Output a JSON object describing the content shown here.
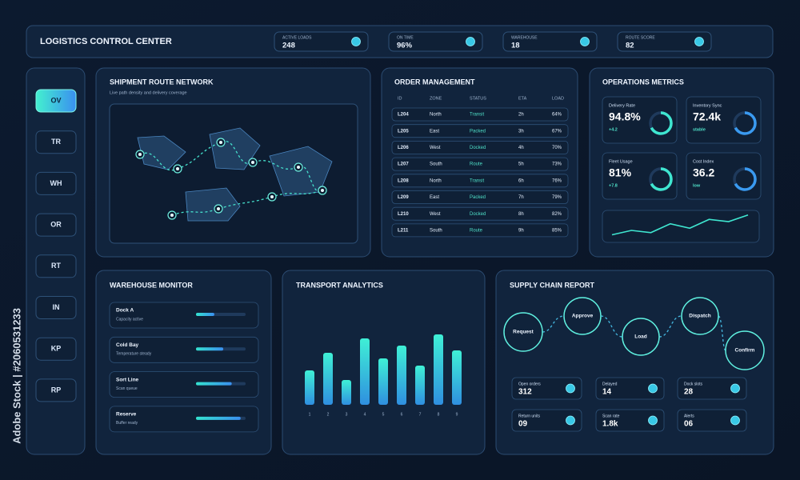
{
  "header": {
    "title": "LOGISTICS CONTROL CENTER",
    "stats": [
      {
        "label": "ACTIVE LOADS",
        "value": "248"
      },
      {
        "label": "ON TIME",
        "value": "96%"
      },
      {
        "label": "WAREHOUSE",
        "value": "18"
      },
      {
        "label": "ROUTE SCORE",
        "value": "82"
      }
    ]
  },
  "sidebar": {
    "items": [
      "OV",
      "TR",
      "WH",
      "OR",
      "RT",
      "IN",
      "KP",
      "RP"
    ],
    "active": 0
  },
  "route_network": {
    "title": "SHIPMENT ROUTE NETWORK",
    "subtitle": "Live path density and delivery coverage"
  },
  "order_management": {
    "title": "ORDER MANAGEMENT",
    "columns": [
      "ID",
      "ZONE",
      "STATUS",
      "ETA",
      "LOAD"
    ],
    "rows": [
      [
        "L204",
        "North",
        "Transit",
        "2h",
        "64%"
      ],
      [
        "L205",
        "East",
        "Packed",
        "3h",
        "67%"
      ],
      [
        "L206",
        "West",
        "Docked",
        "4h",
        "70%"
      ],
      [
        "L207",
        "South",
        "Route",
        "5h",
        "73%"
      ],
      [
        "L208",
        "North",
        "Transit",
        "6h",
        "76%"
      ],
      [
        "L209",
        "East",
        "Packed",
        "7h",
        "79%"
      ],
      [
        "L210",
        "West",
        "Docked",
        "8h",
        "82%"
      ],
      [
        "L211",
        "South",
        "Route",
        "9h",
        "85%"
      ]
    ]
  },
  "operations_metrics": {
    "title": "OPERATIONS METRICS",
    "cards": [
      {
        "label": "Delivery Rate",
        "value": "94.8%",
        "note": "+4.2"
      },
      {
        "label": "Inventory Sync",
        "value": "72.4k",
        "note": "stable"
      },
      {
        "label": "Fleet Usage",
        "value": "81%",
        "note": "+7.8"
      },
      {
        "label": "Cost Index",
        "value": "36.2",
        "note": "low"
      }
    ],
    "trend": {
      "type": "line",
      "values": [
        2,
        4,
        3,
        7,
        5,
        9,
        8,
        11
      ],
      "ylim": [
        0,
        12
      ]
    }
  },
  "warehouse_monitor": {
    "title": "WAREHOUSE MONITOR",
    "progress_lim": [
      0,
      100
    ],
    "items": [
      {
        "name": "Dock A",
        "detail": "Capacity active",
        "progress": 37
      },
      {
        "name": "Cold Bay",
        "detail": "Temperature steady",
        "progress": 55
      },
      {
        "name": "Sort Line",
        "detail": "Scan queue",
        "progress": 72
      },
      {
        "name": "Reserve",
        "detail": "Buffer ready",
        "progress": 90
      }
    ]
  },
  "transport_analytics": {
    "title": "TRANSPORT ANALYTICS",
    "type": "bar",
    "categories": [
      "1",
      "2",
      "3",
      "4",
      "5",
      "6",
      "7",
      "8",
      "9"
    ],
    "values": [
      43,
      65,
      31,
      83,
      58,
      74,
      49,
      88,
      68
    ],
    "ylim": [
      0,
      100
    ]
  },
  "supply_chain": {
    "title": "SUPPLY CHAIN REPORT",
    "steps": [
      "Request",
      "Approve",
      "Load",
      "Dispatch",
      "Confirm"
    ],
    "stats": [
      {
        "label": "Open orders",
        "value": "312"
      },
      {
        "label": "Delayed",
        "value": "14"
      },
      {
        "label": "Dock slots",
        "value": "28"
      },
      {
        "label": "Return units",
        "value": "09"
      },
      {
        "label": "Scan rate",
        "value": "1.8k"
      },
      {
        "label": "Alerts",
        "value": "06"
      }
    ]
  },
  "watermark": "Adobe Stock | #2060531233"
}
